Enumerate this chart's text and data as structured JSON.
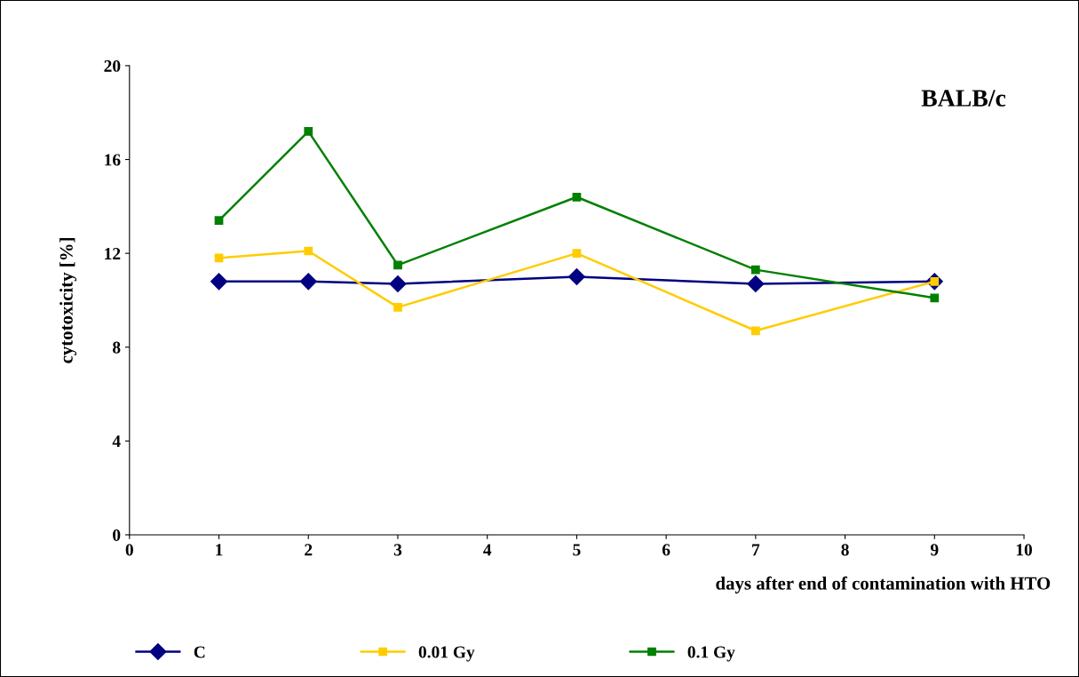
{
  "chart_data": {
    "type": "line",
    "xlabel": "days after end of contamination with HTO",
    "ylabel": "cytotoxicity [%]",
    "annotations": [
      "BALB/c"
    ],
    "x": [
      1,
      2,
      3,
      5,
      7,
      9
    ],
    "series": [
      {
        "name": "C",
        "color": "#000080",
        "marker": "diamond",
        "values": [
          10.8,
          10.8,
          10.7,
          11.0,
          10.7,
          10.8
        ]
      },
      {
        "name": "0.01 Gy",
        "color": "#ffcc00",
        "marker": "square",
        "values": [
          11.8,
          12.1,
          9.7,
          12.0,
          8.7,
          10.8
        ]
      },
      {
        "name": "0.1 Gy",
        "color": "#008000",
        "marker": "square",
        "values": [
          13.4,
          17.2,
          11.5,
          14.4,
          11.3,
          10.1
        ]
      }
    ],
    "xlim": [
      0,
      10
    ],
    "xticks": [
      0,
      1,
      2,
      3,
      4,
      5,
      6,
      7,
      8,
      9,
      10
    ],
    "ylim": [
      0,
      20
    ],
    "yticks": [
      0,
      4,
      8,
      12,
      16,
      20
    ],
    "grid": false,
    "legend": "bottom",
    "line_style": "solid"
  }
}
